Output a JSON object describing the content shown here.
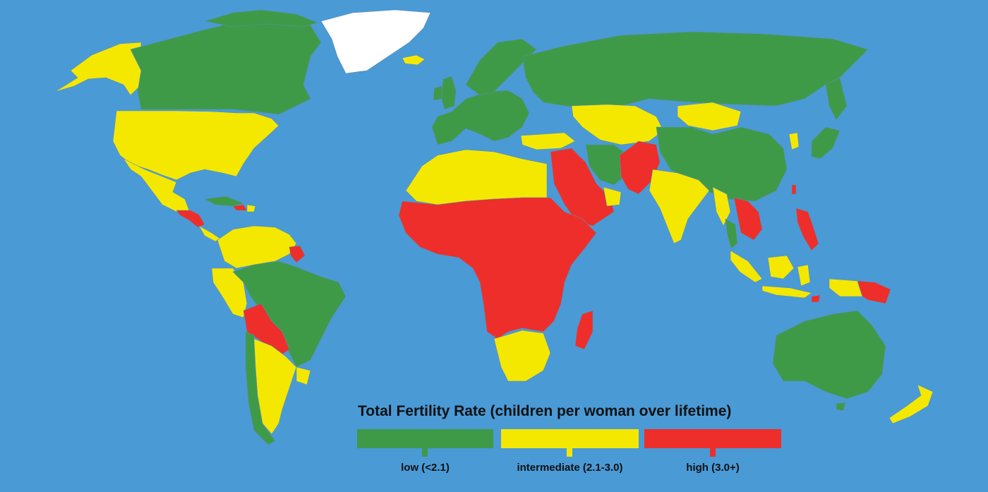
{
  "colors": {
    "ocean": "#4a9ad6",
    "low": "#3f9a48",
    "intermediate": "#f4e800",
    "high": "#ee2e2a",
    "no_data": "#ffffff"
  },
  "legend": {
    "title": "Total Fertility Rate (children per woman over lifetime)",
    "categories": [
      {
        "label": "low (<2.1)",
        "color": "#3f9a48"
      },
      {
        "label": "intermediate (2.1-3.0)",
        "color": "#f4e800"
      },
      {
        "label": "high (3.0+)",
        "color": "#ee2e2a"
      }
    ]
  }
}
